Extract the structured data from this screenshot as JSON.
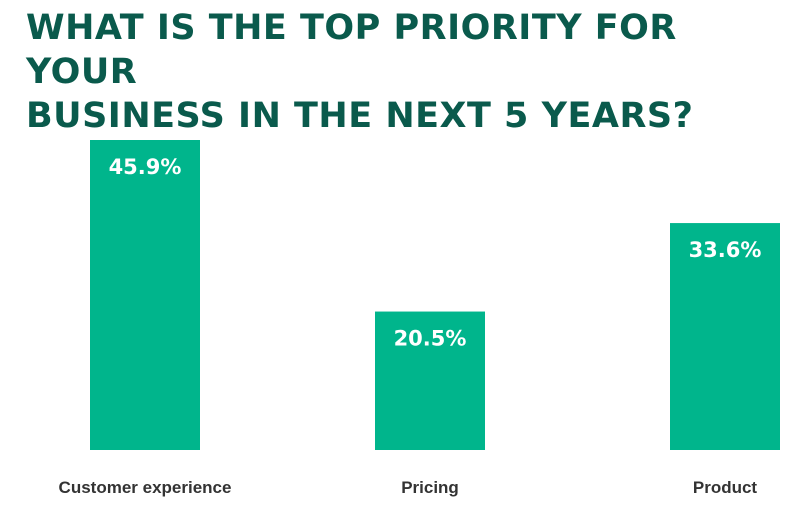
{
  "chart_data": {
    "type": "bar",
    "title_lines": [
      "WHAT IS THE TOP PRIORITY FOR YOUR",
      "BUSINESS IN THE NEXT 5 YEARS?"
    ],
    "categories": [
      "Customer experience",
      "Pricing",
      "Product"
    ],
    "values": [
      45.9,
      20.5,
      33.6
    ],
    "value_labels": [
      "45.9%",
      "20.5%",
      "33.6%"
    ],
    "unit": "%",
    "ylim": [
      0,
      45.9
    ],
    "grid": false,
    "legend": "none",
    "bar_color": "#00b58c",
    "title_color": "#0a5a4c",
    "label_color": "#333333"
  }
}
